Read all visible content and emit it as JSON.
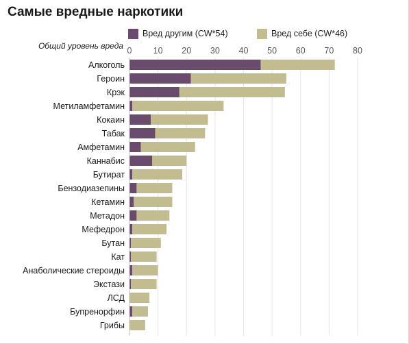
{
  "title": "Самые вредные наркотики",
  "legend": [
    {
      "label": "Вред другим (CW*54)",
      "color": "#6a4a6d"
    },
    {
      "label": "Вред себе (CW*46)",
      "color": "#c2bd8f"
    }
  ],
  "chart_data": {
    "type": "bar",
    "orientation": "horizontal",
    "stacked": true,
    "title": "Самые вредные наркотики",
    "xlabel": "Общий уровень вреда",
    "xlim": [
      0,
      80
    ],
    "x_ticks": [
      "0",
      "10",
      "20",
      "30",
      "40",
      "50",
      "60",
      "70",
      "80"
    ],
    "categories": [
      "Алкоголь",
      "Героин",
      "Крэк",
      "Метиламфетамин",
      "Кокаин",
      "Табак",
      "Амфетамин",
      "Каннабис",
      "Бутират",
      "Бензодиазепины",
      "Кетамин",
      "Метадон",
      "Мефедрон",
      "Бутан",
      "Кат",
      "Анаболические стероиды",
      "Экстази",
      "ЛСД",
      "Бупренорфин",
      "Грибы"
    ],
    "series": [
      {
        "name": "Вред другим (CW*54)",
        "color": "#6a4a6d",
        "values": [
          46,
          21.5,
          17.5,
          1,
          7.5,
          9,
          4,
          8,
          1,
          2.5,
          1.5,
          2.5,
          1,
          0.5,
          0.5,
          1,
          0.5,
          0,
          1,
          0
        ]
      },
      {
        "name": "Вред себе (CW*46)",
        "color": "#c2bd8f",
        "values": [
          26,
          33.5,
          37,
          32,
          20,
          17.5,
          19,
          12,
          17.5,
          12.5,
          13.5,
          11.5,
          12,
          10.5,
          9,
          9,
          9,
          7,
          5.5,
          5.5
        ]
      }
    ],
    "grid": "vertical"
  }
}
